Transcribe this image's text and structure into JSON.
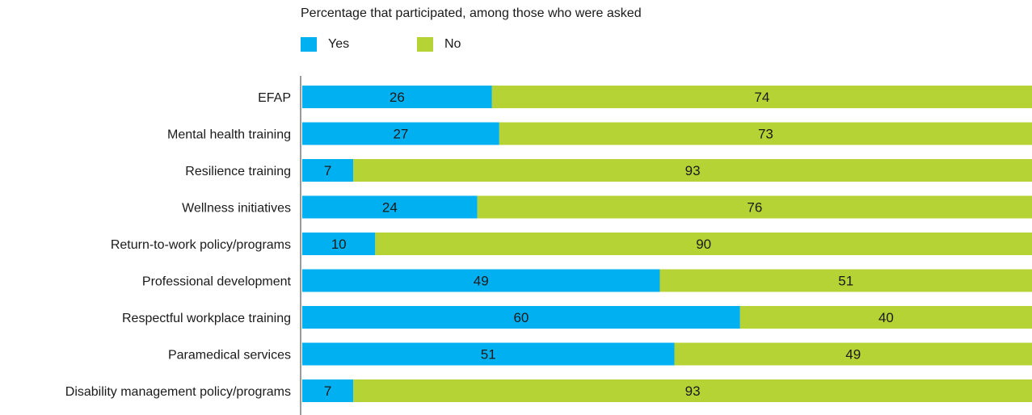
{
  "chart_data": {
    "type": "bar",
    "orientation": "horizontal",
    "stacked": true,
    "subtitle": "Percentage that participated, among those who were asked",
    "categories": [
      "EFAP",
      "Mental health training",
      "Resilience training",
      "Wellness initiatives",
      "Return-to-work policy/programs",
      "Professional development",
      "Respectful workplace training",
      "Paramedical services",
      "Disability management policy/programs"
    ],
    "series": [
      {
        "name": "Yes",
        "color": "#00b0f0",
        "values": [
          26,
          27,
          7,
          24,
          10,
          49,
          60,
          51,
          7
        ]
      },
      {
        "name": "No",
        "color": "#b5d334",
        "values": [
          74,
          73,
          93,
          76,
          90,
          51,
          40,
          49,
          93
        ]
      }
    ],
    "xlim": [
      0,
      100
    ],
    "grid": false,
    "legend_position": "top"
  }
}
